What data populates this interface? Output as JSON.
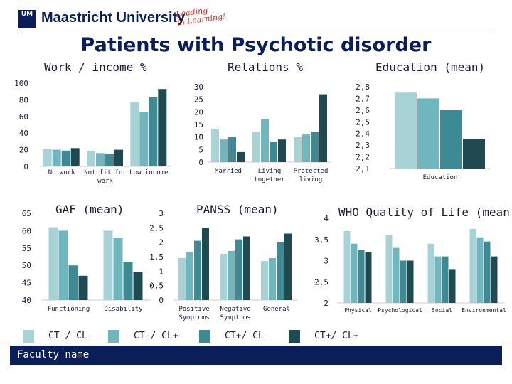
{
  "header": {
    "university": "Maastricht University",
    "tagline_line1": "Leading",
    "tagline_line2": "in Learning!",
    "logo_mark": "UM"
  },
  "slide_title": "Patients with Psychotic disorder",
  "footer": {
    "label": "Faculty name"
  },
  "colors": [
    "#a7d3d7",
    "#6fb6bf",
    "#3d8a94",
    "#1f4b50"
  ],
  "legend": [
    "CT-/ CL-",
    "CT-/ CL+",
    "CT+/ CL-",
    "CT+/ CL+"
  ],
  "chart_data": [
    {
      "id": "work",
      "type": "bar",
      "title": "Work / income %",
      "categories": [
        "No work",
        "Not fit for work",
        "Low income"
      ],
      "category_lines": [
        [
          "No work"
        ],
        [
          "Not fit for",
          "work"
        ],
        [
          "Low income"
        ]
      ],
      "ylim": [
        0,
        100
      ],
      "yticks": [
        0,
        20,
        40,
        60,
        80,
        100
      ],
      "tick_labels": [
        "0",
        "20",
        "40",
        "60",
        "80",
        "100"
      ],
      "series": [
        {
          "name": "CT-/ CL-",
          "values": [
            21,
            19,
            77
          ]
        },
        {
          "name": "CT-/ CL+",
          "values": [
            20,
            16,
            65
          ]
        },
        {
          "name": "CT+/ CL-",
          "values": [
            19,
            15,
            83
          ]
        },
        {
          "name": "CT+/ CL+",
          "values": [
            22,
            20,
            93
          ]
        }
      ]
    },
    {
      "id": "relations",
      "type": "bar",
      "title": "Relations %",
      "categories": [
        "Married",
        "Living together",
        "Protected living"
      ],
      "category_lines": [
        [
          "Married"
        ],
        [
          "Living",
          "together"
        ],
        [
          "Protected",
          "living"
        ]
      ],
      "ylim": [
        0,
        30
      ],
      "yticks": [
        0,
        5,
        10,
        15,
        20,
        25,
        30
      ],
      "tick_labels": [
        "0",
        "5",
        "10",
        "15",
        "20",
        "25",
        "30"
      ],
      "series": [
        {
          "name": "CT-/ CL-",
          "values": [
            13,
            12,
            10
          ]
        },
        {
          "name": "CT-/ CL+",
          "values": [
            9,
            17,
            11
          ]
        },
        {
          "name": "CT+/ CL-",
          "values": [
            10,
            8,
            12
          ]
        },
        {
          "name": "CT+/ CL+",
          "values": [
            4,
            9,
            27
          ]
        }
      ]
    },
    {
      "id": "education",
      "type": "bar",
      "title": "Education (mean)",
      "categories": [
        "Education"
      ],
      "category_lines": [
        [
          "Education"
        ]
      ],
      "ylim": [
        2.1,
        2.8
      ],
      "yticks": [
        2.1,
        2.2,
        2.3,
        2.4,
        2.5,
        2.6,
        2.7,
        2.8
      ],
      "tick_labels": [
        "2,1",
        "2,2",
        "2,3",
        "2,4",
        "2,5",
        "2,6",
        "2,7",
        "2,8"
      ],
      "series": [
        {
          "name": "CT-/ CL-",
          "values": [
            2.75
          ]
        },
        {
          "name": "CT-/ CL+",
          "values": [
            2.7
          ]
        },
        {
          "name": "CT+/ CL-",
          "values": [
            2.6
          ]
        },
        {
          "name": "CT+/ CL+",
          "values": [
            2.35
          ]
        }
      ]
    },
    {
      "id": "gaf",
      "type": "bar",
      "title": "GAF (mean)",
      "categories": [
        "Functioning",
        "Disability"
      ],
      "category_lines": [
        [
          "Functioning"
        ],
        [
          "Disability"
        ]
      ],
      "ylim": [
        40,
        65
      ],
      "yticks": [
        40,
        45,
        50,
        55,
        60,
        65
      ],
      "tick_labels": [
        "40",
        "45",
        "50",
        "55",
        "60",
        "65"
      ],
      "series": [
        {
          "name": "CT-/ CL-",
          "values": [
            61,
            60
          ]
        },
        {
          "name": "CT-/ CL+",
          "values": [
            60,
            58
          ]
        },
        {
          "name": "CT+/ CL-",
          "values": [
            50,
            51
          ]
        },
        {
          "name": "CT+/ CL+",
          "values": [
            47,
            48
          ]
        }
      ]
    },
    {
      "id": "panss",
      "type": "bar",
      "title": "PANSS (mean)",
      "categories": [
        "Positive Symptoms",
        "Negative Symptoms",
        "General"
      ],
      "category_lines": [
        [
          "Positive",
          "Symptoms"
        ],
        [
          "Negative",
          "Symptoms"
        ],
        [
          "General"
        ]
      ],
      "ylim": [
        0,
        3
      ],
      "yticks": [
        0,
        0.5,
        1,
        1.5,
        2,
        2.5,
        3
      ],
      "tick_labels": [
        "0",
        "0,5",
        "1",
        "1,5",
        "2",
        "2,5",
        "3"
      ],
      "series": [
        {
          "name": "CT-/ CL-",
          "values": [
            1.45,
            1.6,
            1.35
          ]
        },
        {
          "name": "CT-/ CL+",
          "values": [
            1.65,
            1.7,
            1.45
          ]
        },
        {
          "name": "CT+/ CL-",
          "values": [
            2.05,
            2.1,
            2.0
          ]
        },
        {
          "name": "CT+/ CL+",
          "values": [
            2.5,
            2.2,
            2.3
          ]
        }
      ]
    },
    {
      "id": "whoqol",
      "type": "bar",
      "title": "WHO Quality of Life (mean)",
      "categories": [
        "Physical",
        "Psychological",
        "Social",
        "Environmental"
      ],
      "category_lines": [
        [
          "Physical"
        ],
        [
          "Psychological"
        ],
        [
          "Social"
        ],
        [
          "Environmental"
        ]
      ],
      "ylim": [
        2,
        4
      ],
      "yticks": [
        2,
        2.5,
        3,
        3.5,
        4
      ],
      "tick_labels": [
        "2",
        "2,5",
        "3",
        "3,5",
        "4"
      ],
      "series": [
        {
          "name": "CT-/ CL-",
          "values": [
            3.7,
            3.6,
            3.4,
            3.75
          ]
        },
        {
          "name": "CT-/ CL+",
          "values": [
            3.4,
            3.3,
            3.1,
            3.55
          ]
        },
        {
          "name": "CT+/ CL-",
          "values": [
            3.25,
            3.0,
            3.1,
            3.45
          ]
        },
        {
          "name": "CT+/ CL+",
          "values": [
            3.2,
            3.0,
            2.8,
            3.1
          ]
        }
      ]
    }
  ]
}
